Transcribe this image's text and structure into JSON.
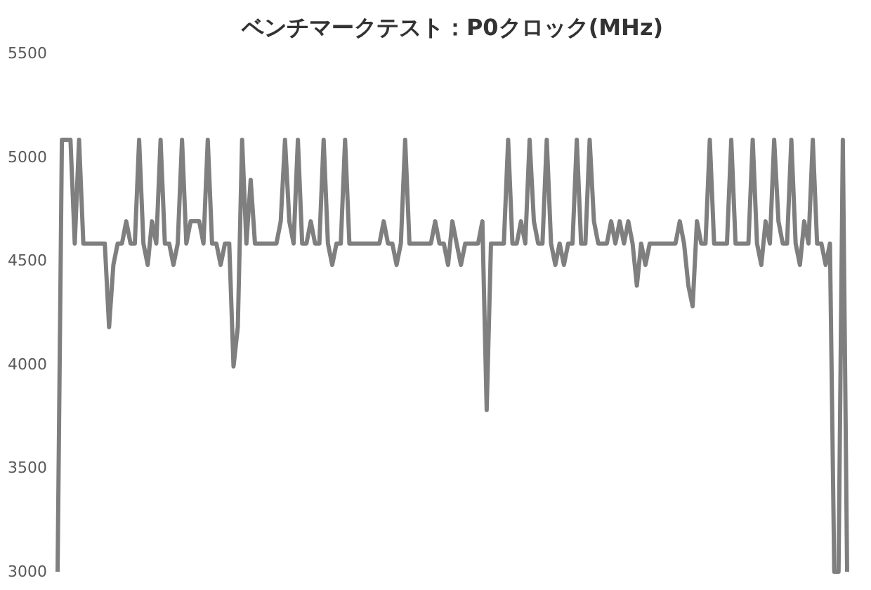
{
  "chart_data": {
    "type": "line",
    "title": "ベンチマークテスト：P0クロック(MHz)",
    "categories": [
      null,
      null,
      null,
      null,
      null,
      null,
      null,
      null,
      null,
      null,
      null,
      null,
      null,
      null,
      null,
      null,
      null,
      null,
      null,
      null,
      null,
      null,
      null,
      null,
      null,
      null,
      null,
      null,
      null,
      null,
      null,
      null,
      null,
      null,
      null,
      null,
      null,
      null,
      null,
      null,
      null,
      null,
      null,
      null,
      null,
      null,
      null,
      null,
      null,
      null,
      null,
      null,
      null,
      null,
      null,
      null,
      null,
      null,
      null,
      null,
      null,
      null,
      null,
      null,
      null,
      null,
      null,
      null,
      null,
      null,
      null,
      null,
      null,
      null,
      null,
      null,
      null,
      null,
      null,
      null,
      null,
      null,
      null,
      null,
      null,
      null,
      null,
      null,
      null,
      null,
      null,
      null,
      null,
      null,
      null,
      null,
      null,
      null,
      null,
      null,
      null,
      null,
      null,
      null,
      null,
      null,
      null,
      null,
      null,
      null,
      null,
      null,
      null,
      null,
      null,
      null,
      null,
      null,
      null,
      null,
      null,
      null,
      null,
      null,
      null,
      null,
      null,
      null,
      null,
      null,
      null,
      null,
      null,
      null,
      null,
      null,
      null,
      null,
      null,
      null,
      null,
      null,
      null,
      null,
      null,
      null,
      null,
      null,
      null,
      null,
      null,
      null,
      null,
      null,
      null,
      null,
      null,
      null,
      null,
      null,
      null,
      null,
      null,
      null,
      null,
      null,
      null,
      null,
      null,
      null,
      null,
      null,
      null,
      null,
      null,
      null,
      null,
      null,
      null,
      null,
      null,
      null,
      null,
      null,
      null
    ],
    "series": [
      {
        "color": "#7f7f7f",
        "values": [
          3000,
          5083,
          5083,
          5083,
          4583,
          5083,
          4583,
          4583,
          4583,
          4583,
          4583,
          4583,
          4180,
          4480,
          4583,
          4583,
          4690,
          4583,
          4583,
          5083,
          4583,
          4480,
          4690,
          4583,
          5083,
          4583,
          4583,
          4480,
          4583,
          5083,
          4583,
          4690,
          4690,
          4690,
          4583,
          5083,
          4583,
          4583,
          4480,
          4583,
          4583,
          3990,
          4180,
          5083,
          4583,
          4890,
          4583,
          4583,
          4583,
          4583,
          4583,
          4583,
          4690,
          5083,
          4690,
          4583,
          5083,
          4583,
          4583,
          4690,
          4583,
          4583,
          5083,
          4583,
          4480,
          4583,
          4583,
          5083,
          4583,
          4583,
          4583,
          4583,
          4583,
          4583,
          4583,
          4583,
          4690,
          4583,
          4583,
          4480,
          4583,
          5083,
          4583,
          4583,
          4583,
          4583,
          4583,
          4583,
          4690,
          4583,
          4583,
          4480,
          4690,
          4583,
          4480,
          4583,
          4583,
          4583,
          4583,
          4690,
          3780,
          4583,
          4583,
          4583,
          4583,
          5083,
          4583,
          4583,
          4690,
          4583,
          5083,
          4690,
          4583,
          4583,
          5083,
          4583,
          4480,
          4583,
          4480,
          4583,
          4583,
          5083,
          4583,
          4583,
          5083,
          4690,
          4583,
          4583,
          4583,
          4690,
          4583,
          4690,
          4583,
          4690,
          4583,
          4380,
          4583,
          4480,
          4583,
          4583,
          4583,
          4583,
          4583,
          4583,
          4583,
          4690,
          4583,
          4380,
          4280,
          4690,
          4583,
          4583,
          5083,
          4583,
          4583,
          4583,
          4583,
          5083,
          4583,
          4583,
          4583,
          4583,
          5083,
          4583,
          4480,
          4690,
          4583,
          5083,
          4690,
          4583,
          4583,
          5083,
          4583,
          4480,
          4690,
          4583,
          5083,
          4583,
          4583,
          4480,
          4583,
          3000,
          3000,
          5083,
          3000
        ]
      }
    ],
    "ylim": [
      3000,
      5500
    ],
    "yticks": [
      3000,
      3500,
      4000,
      4500,
      5000,
      5500
    ],
    "grid": false,
    "tick_labels": "y",
    "line_style": "solid",
    "marker": "none"
  }
}
